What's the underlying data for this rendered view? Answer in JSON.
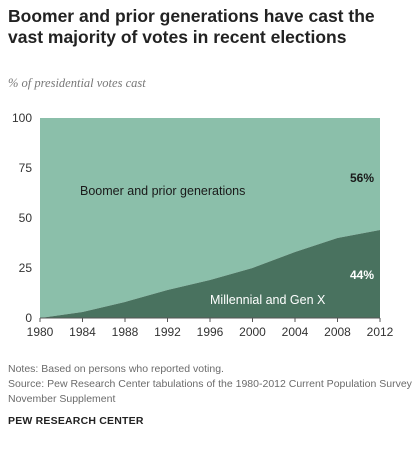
{
  "title": "Boomer and prior generations have cast the vast majority of votes in recent elections",
  "subtitle": "% of presidential votes cast",
  "chart_data": {
    "type": "area",
    "stacked": true,
    "x": [
      1980,
      1984,
      1988,
      1992,
      1996,
      2000,
      2004,
      2008,
      2012
    ],
    "x_tick_labels": [
      "1980",
      "1984",
      "1988",
      "1992",
      "1996",
      "2000",
      "2004",
      "2008",
      "2012"
    ],
    "y_ticks": [
      0,
      25,
      50,
      75,
      100
    ],
    "y_tick_labels": [
      "0",
      "25",
      "50",
      "75",
      "100"
    ],
    "ylim": [
      0,
      100
    ],
    "xlim": [
      1980,
      2012
    ],
    "series": [
      {
        "name": "Millennial and Gen X",
        "values": [
          0,
          3,
          8,
          14,
          19,
          25,
          33,
          40,
          44
        ],
        "color": "#49725f"
      },
      {
        "name": "Boomer and prior generations",
        "values": [
          100,
          97,
          92,
          86,
          81,
          75,
          67,
          60,
          56
        ],
        "color": "#8bbfaa"
      }
    ],
    "annotations": {
      "boomer_label": "Boomer and prior generations",
      "boomer_pct": "56%",
      "millennial_label": "Millennial and Gen X",
      "millennial_pct": "44%"
    },
    "label_colors": {
      "on_light": "#1a1a1a",
      "on_dark": "#ffffff"
    }
  },
  "notes": {
    "line1": "Notes: Based on persons who reported voting.",
    "line2": "Source: Pew Research Center tabulations of the 1980-2012 Current Population Survey",
    "line3": "November Supplement"
  },
  "brand": "PEW RESEARCH CENTER"
}
